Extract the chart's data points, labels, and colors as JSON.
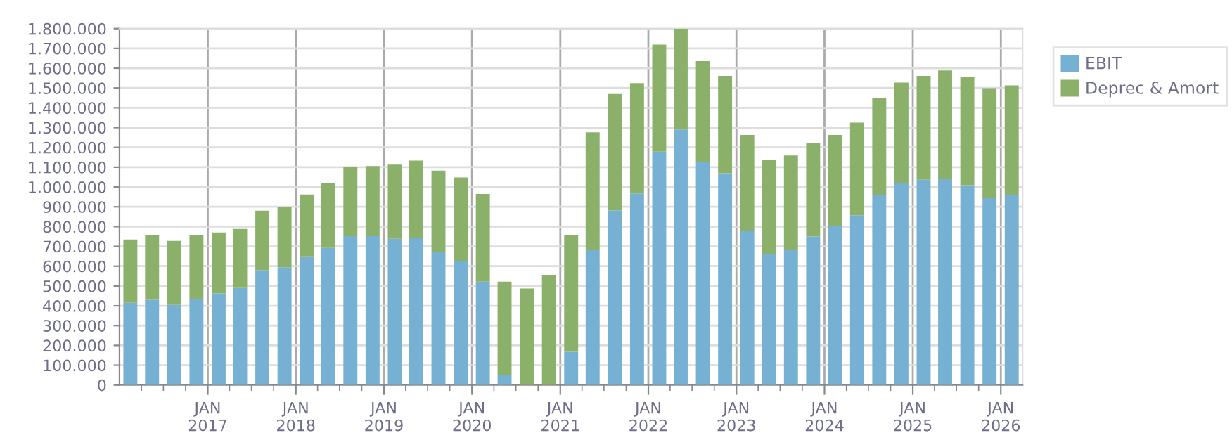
{
  "chart_data": {
    "type": "bar",
    "stacked": true,
    "legend": "top right",
    "grid": true,
    "x": [
      "2016-02-15",
      "2016-05-15",
      "2016-08-15",
      "2016-11-15",
      "2017-02-15",
      "2017-05-15",
      "2017-08-15",
      "2017-11-15",
      "2018-02-15",
      "2018-05-15",
      "2018-08-15",
      "2018-11-15",
      "2019-02-15",
      "2019-05-15",
      "2019-08-15",
      "2019-11-15",
      "2020-02-15",
      "2020-05-15",
      "2020-08-15",
      "2020-11-15",
      "2021-02-15",
      "2021-05-15",
      "2021-08-15",
      "2021-11-15",
      "2022-02-15",
      "2022-05-15",
      "2022-08-15",
      "2022-11-15",
      "2023-02-15",
      "2023-05-15",
      "2023-08-15",
      "2023-11-15",
      "2024-02-15",
      "2024-05-15",
      "2024-08-15",
      "2024-11-15",
      "2025-02-15",
      "2025-05-15",
      "2025-08-15",
      "2025-11-15",
      "2026-02-15"
    ],
    "series": [
      {
        "name": "EBIT",
        "color": "#76b0d2",
        "values": [
          415000,
          430000,
          405000,
          435000,
          462000,
          490000,
          580000,
          595000,
          650000,
          692000,
          752000,
          752000,
          738000,
          745000,
          674000,
          625000,
          522000,
          51000,
          0,
          0,
          168000,
          681000,
          882000,
          967000,
          1179000,
          1290000,
          1124000,
          1069000,
          778000,
          663000,
          681000,
          750000,
          801000,
          857000,
          958000,
          1021000,
          1037000,
          1042000,
          1009000,
          945000,
          958000
        ]
      },
      {
        "name": "Deprec & Amort",
        "color": "#8ab06a",
        "values": [
          320000,
          325000,
          323000,
          320000,
          308000,
          298000,
          300000,
          305000,
          312000,
          326000,
          348000,
          354000,
          375000,
          388000,
          409000,
          423000,
          443000,
          471000,
          487000,
          556000,
          589000,
          595000,
          588000,
          558000,
          540000,
          510000,
          512000,
          492000,
          485000,
          475000,
          478000,
          471000,
          462000,
          468000,
          492000,
          506000,
          524000,
          547000,
          545000,
          554000,
          555000
        ]
      }
    ],
    "xlim": [
      "2016-01-01",
      "2026-04-01"
    ],
    "xticks": [
      {
        "value": "2016-04-01",
        "label": null
      },
      {
        "value": "2016-07-01",
        "label": null
      },
      {
        "value": "2016-10-01",
        "label": null
      },
      {
        "value": "2017-01-01",
        "label": "JAN\n2017"
      },
      {
        "value": "2017-04-01",
        "label": null
      },
      {
        "value": "2017-07-01",
        "label": null
      },
      {
        "value": "2017-10-01",
        "label": null
      },
      {
        "value": "2018-01-01",
        "label": "JAN\n2018"
      },
      {
        "value": "2018-04-01",
        "label": null
      },
      {
        "value": "2018-07-01",
        "label": null
      },
      {
        "value": "2018-10-01",
        "label": null
      },
      {
        "value": "2019-01-01",
        "label": "JAN\n2019"
      },
      {
        "value": "2019-04-01",
        "label": null
      },
      {
        "value": "2019-07-01",
        "label": null
      },
      {
        "value": "2019-10-01",
        "label": null
      },
      {
        "value": "2020-01-01",
        "label": "JAN\n2020"
      },
      {
        "value": "2020-04-01",
        "label": null
      },
      {
        "value": "2020-07-01",
        "label": null
      },
      {
        "value": "2020-10-01",
        "label": null
      },
      {
        "value": "2021-01-01",
        "label": "JAN\n2021"
      },
      {
        "value": "2021-04-01",
        "label": null
      },
      {
        "value": "2021-07-01",
        "label": null
      },
      {
        "value": "2021-10-01",
        "label": null
      },
      {
        "value": "2022-01-01",
        "label": "JAN\n2022"
      },
      {
        "value": "2022-04-01",
        "label": null
      },
      {
        "value": "2022-07-01",
        "label": null
      },
      {
        "value": "2022-10-01",
        "label": null
      },
      {
        "value": "2023-01-01",
        "label": "JAN\n2023"
      },
      {
        "value": "2023-04-01",
        "label": null
      },
      {
        "value": "2023-07-01",
        "label": null
      },
      {
        "value": "2023-10-01",
        "label": null
      },
      {
        "value": "2024-01-01",
        "label": "JAN\n2024"
      },
      {
        "value": "2024-04-01",
        "label": null
      },
      {
        "value": "2024-07-01",
        "label": null
      },
      {
        "value": "2024-10-01",
        "label": null
      },
      {
        "value": "2025-01-01",
        "label": "JAN\n2025"
      },
      {
        "value": "2025-04-01",
        "label": null
      },
      {
        "value": "2025-07-01",
        "label": null
      },
      {
        "value": "2025-10-01",
        "label": null
      },
      {
        "value": "2026-01-01",
        "label": "JAN\n2026"
      }
    ],
    "ylim": [
      0,
      1800000
    ],
    "yticks": [
      0,
      {
        "value": 100000,
        "label": "100.000"
      },
      {
        "value": 200000,
        "label": "200.000"
      },
      {
        "value": 300000,
        "label": "300.000"
      },
      {
        "value": 400000,
        "label": "400.000"
      },
      {
        "value": 500000,
        "label": "500.000"
      },
      {
        "value": 600000,
        "label": "600.000"
      },
      {
        "value": 700000,
        "label": "700.000"
      },
      {
        "value": 800000,
        "label": "800.000"
      },
      {
        "value": 900000,
        "label": "900.000"
      },
      {
        "value": 1000000,
        "label": "1.000.000"
      },
      {
        "value": 1100000,
        "label": "1.100.000"
      },
      {
        "value": 1200000,
        "label": "1.200.000"
      },
      {
        "value": 1300000,
        "label": "1.300.000"
      },
      {
        "value": 1400000,
        "label": "1.400.000"
      },
      {
        "value": 1500000,
        "label": "1.500.000"
      },
      {
        "value": 1600000,
        "label": "1.600.000"
      },
      {
        "value": 1700000,
        "label": "1.700.000"
      },
      {
        "value": 1800000,
        "label": "1.800.000"
      }
    ]
  }
}
